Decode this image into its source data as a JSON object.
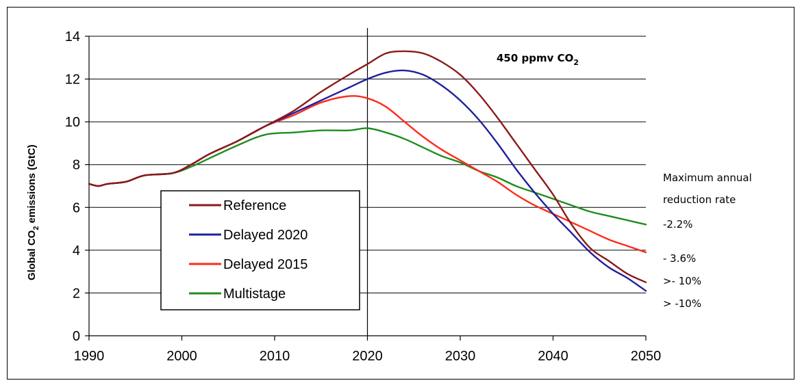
{
  "chart_data": {
    "type": "line",
    "title": "450 ppmv CO",
    "title_subscript": "2",
    "ylabel": "Global CO",
    "ylabel_subscript": "2",
    "ylabel_suffix": " emissions (GtC)",
    "xlim": [
      1990,
      2050
    ],
    "ylim": [
      0,
      14
    ],
    "x_ticks": [
      "1990",
      "2000",
      "2010",
      "2020",
      "2030",
      "2040",
      "2050"
    ],
    "y_ticks": [
      "0",
      "2",
      "4",
      "6",
      "8",
      "10",
      "12",
      "14"
    ],
    "vertical_line_at": 2020,
    "grid": "horizontal",
    "legend_position": "lower-left",
    "x": [
      1990,
      1991,
      1992,
      1994,
      1996,
      1999,
      2001,
      2003,
      2006,
      2009,
      2012,
      2015,
      2018,
      2020,
      2022,
      2024,
      2026,
      2028,
      2030,
      2032,
      2034,
      2036,
      2038,
      2040,
      2042,
      2044,
      2046,
      2048,
      2050
    ],
    "series": [
      {
        "name": "Reference",
        "color": "#8b1a1a",
        "values": [
          7.1,
          7.0,
          7.1,
          7.2,
          7.5,
          7.6,
          8.0,
          8.5,
          9.1,
          9.8,
          10.5,
          11.4,
          12.2,
          12.7,
          13.2,
          13.3,
          13.2,
          12.8,
          12.2,
          11.3,
          10.2,
          9.0,
          7.8,
          6.6,
          5.2,
          4.1,
          3.5,
          2.9,
          2.5
        ]
      },
      {
        "name": "Delayed 2020",
        "color": "#1f1f9e",
        "values": [
          7.1,
          7.0,
          7.1,
          7.2,
          7.5,
          7.6,
          8.0,
          8.5,
          9.1,
          9.8,
          10.4,
          11.0,
          11.6,
          12.0,
          12.3,
          12.4,
          12.2,
          11.7,
          11.0,
          10.1,
          9.0,
          7.8,
          6.7,
          5.7,
          4.8,
          3.9,
          3.2,
          2.7,
          2.1
        ]
      },
      {
        "name": "Delayed 2015",
        "color": "#ff2a1a",
        "values": [
          7.1,
          7.0,
          7.1,
          7.2,
          7.5,
          7.6,
          8.0,
          8.5,
          9.1,
          9.8,
          10.3,
          10.9,
          11.2,
          11.1,
          10.7,
          10.0,
          9.3,
          8.7,
          8.2,
          7.7,
          7.2,
          6.6,
          6.1,
          5.7,
          5.3,
          4.9,
          4.5,
          4.2,
          3.9
        ]
      },
      {
        "name": "Multistage",
        "color": "#1e8c1e",
        "values": [
          7.1,
          7.0,
          7.1,
          7.2,
          7.5,
          7.6,
          7.9,
          8.3,
          8.9,
          9.4,
          9.5,
          9.6,
          9.6,
          9.7,
          9.5,
          9.2,
          8.8,
          8.4,
          8.1,
          7.7,
          7.4,
          7.0,
          6.7,
          6.4,
          6.1,
          5.8,
          5.6,
          5.4,
          5.2
        ]
      }
    ],
    "annotation_title": [
      "Maximum annual",
      "reduction rate"
    ],
    "rate_labels": [
      "-2.2%",
      "- 3.6%",
      ">- 10%",
      "> -10%"
    ]
  }
}
